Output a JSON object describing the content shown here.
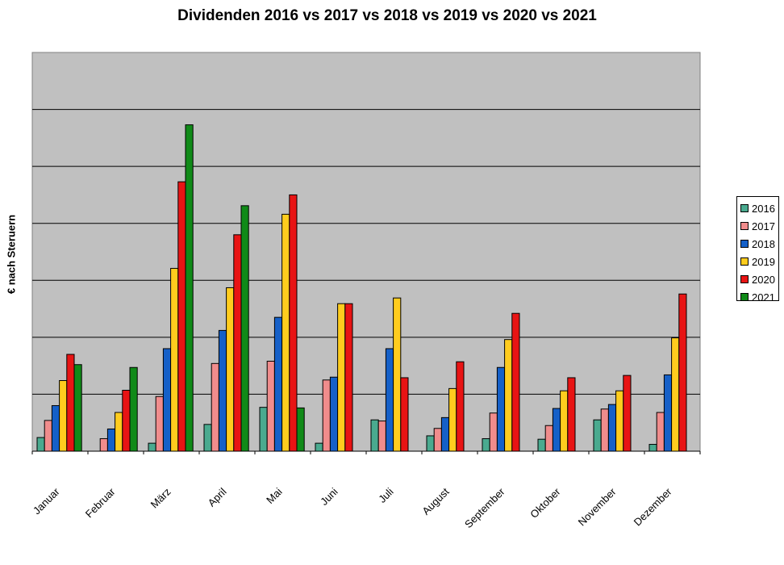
{
  "chart_data": {
    "type": "bar",
    "title": "Dividenden 2016 vs 2017 vs 2018 vs 2019 vs 2020 vs 2021",
    "xlabel": "",
    "ylabel": "€ nach Steruern",
    "ylim": [
      0,
      700
    ],
    "grid": true,
    "legend_position": "right",
    "categories": [
      "Januar",
      "Februar",
      "März",
      "April",
      "Mai",
      "Juni",
      "Juli",
      "August",
      "September",
      "Oktober",
      "November",
      "Dezember"
    ],
    "series": [
      {
        "name": "2016",
        "color": "#4aaa8f",
        "values": [
          24,
          0,
          14,
          47,
          77,
          14,
          55,
          27,
          22,
          21,
          55,
          12
        ]
      },
      {
        "name": "2017",
        "color": "#f08c8c",
        "values": [
          54,
          22,
          96,
          154,
          158,
          125,
          53,
          40,
          67,
          45,
          74,
          68
        ]
      },
      {
        "name": "2018",
        "color": "#1560c8",
        "values": [
          80,
          39,
          180,
          212,
          235,
          130,
          180,
          59,
          147,
          75,
          82,
          134
        ]
      },
      {
        "name": "2019",
        "color": "#ffcc1e",
        "values": [
          124,
          68,
          321,
          287,
          416,
          259,
          269,
          110,
          196,
          106,
          106,
          199
        ]
      },
      {
        "name": "2020",
        "color": "#e81414",
        "values": [
          170,
          107,
          473,
          380,
          450,
          259,
          129,
          157,
          242,
          129,
          133,
          276
        ]
      },
      {
        "name": "2021",
        "color": "#108a18",
        "values": [
          152,
          147,
          573,
          431,
          76,
          null,
          null,
          null,
          null,
          null,
          null,
          null
        ]
      }
    ]
  }
}
